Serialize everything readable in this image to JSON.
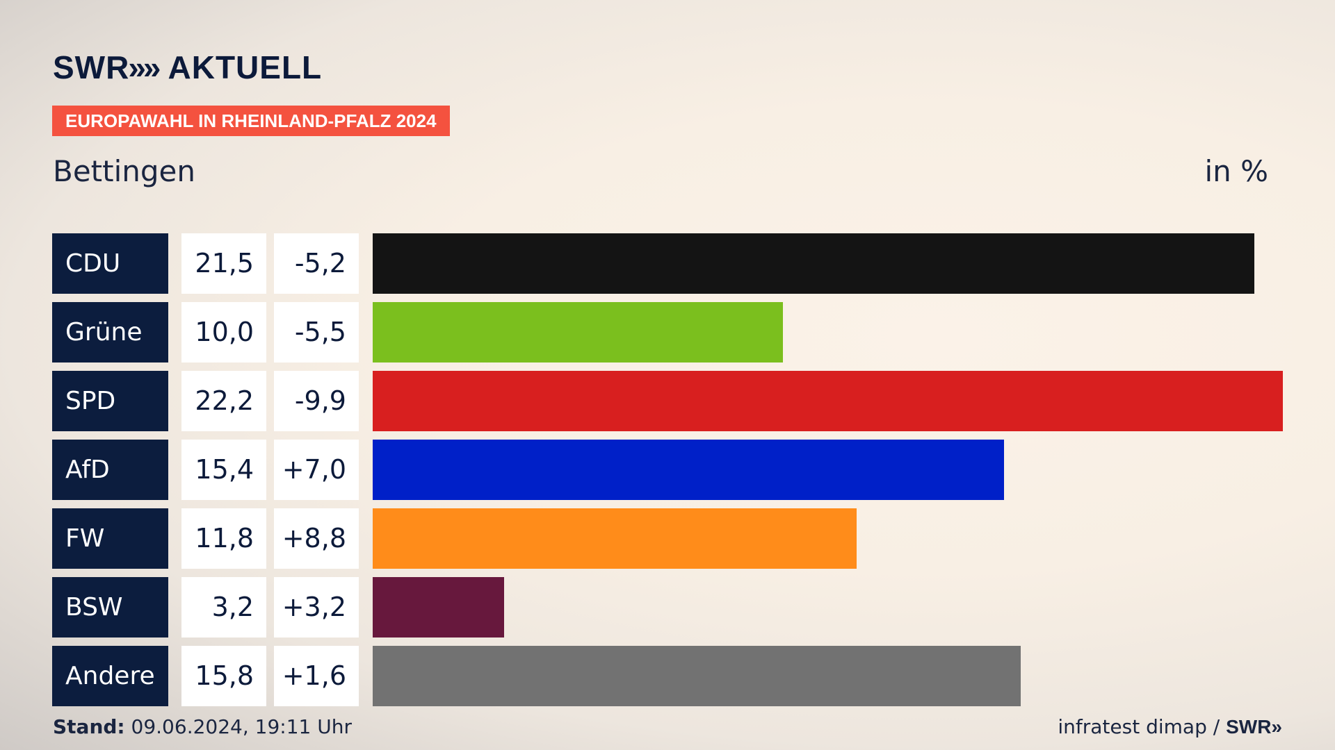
{
  "brand": {
    "swr": "SWR",
    "arrows": "»",
    "aktuell": "AKTUELL"
  },
  "badge": "EUROPAWAHL IN RHEINLAND-PFALZ 2024",
  "place": "Bettingen",
  "unit": "in %",
  "footer": {
    "stand_label": "Stand:",
    "stand_value": "09.06.2024, 19:11 Uhr",
    "source": "infratest dimap / ",
    "source_brand": "SWR»"
  },
  "chart_data": {
    "type": "bar",
    "orientation": "horizontal",
    "title": "",
    "xlabel": "",
    "ylabel": "",
    "unit": "in %",
    "categories": [
      "CDU",
      "Grüne",
      "SPD",
      "AfD",
      "FW",
      "BSW",
      "Andere"
    ],
    "values": [
      21.5,
      10.0,
      22.2,
      15.4,
      11.8,
      3.2,
      15.8
    ],
    "value_labels": [
      "21,5",
      "10,0",
      "22,2",
      "15,4",
      "11,8",
      "3,2",
      "15,8"
    ],
    "changes": [
      -5.2,
      -5.5,
      -9.9,
      7.0,
      8.8,
      3.2,
      1.6
    ],
    "change_labels": [
      "-5,2",
      "-5,5",
      "-9,9",
      "+7,0",
      "+8,8",
      "+3,2",
      "+1,6"
    ],
    "colors": [
      "#141414",
      "#7bbf1e",
      "#d81f1f",
      "#0020c8",
      "#ff8c1a",
      "#67183d",
      "#727272"
    ],
    "xlim": [
      0,
      22.2
    ],
    "grid": false
  }
}
